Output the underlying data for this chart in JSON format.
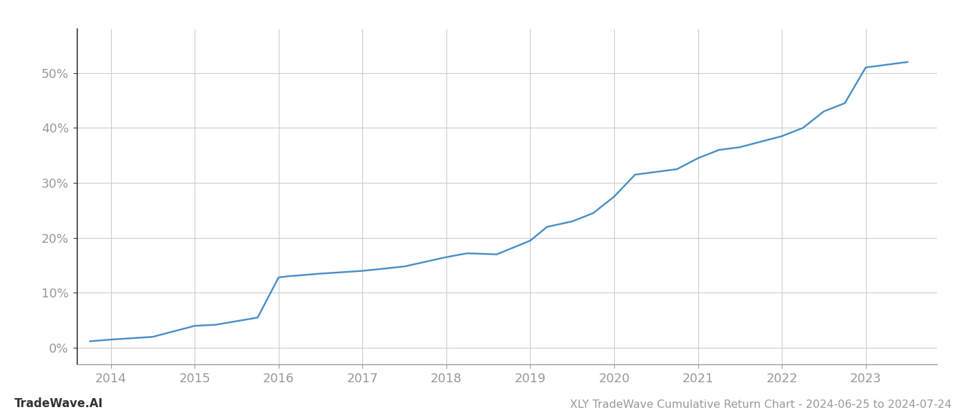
{
  "x_years": [
    2013.75,
    2014.0,
    2014.5,
    2015.0,
    2015.25,
    2015.75,
    2016.0,
    2016.1,
    2016.5,
    2017.0,
    2017.5,
    2018.0,
    2018.25,
    2018.6,
    2019.0,
    2019.2,
    2019.5,
    2019.75,
    2020.0,
    2020.25,
    2020.5,
    2020.75,
    2021.0,
    2021.25,
    2021.5,
    2021.75,
    2022.0,
    2022.25,
    2022.5,
    2022.75,
    2023.0,
    2023.5
  ],
  "y_values": [
    1.2,
    1.5,
    2.0,
    4.0,
    4.2,
    5.5,
    12.8,
    13.0,
    13.5,
    14.0,
    14.8,
    16.5,
    17.2,
    17.0,
    19.5,
    22.0,
    23.0,
    24.5,
    27.5,
    31.5,
    32.0,
    32.5,
    34.5,
    36.0,
    36.5,
    37.5,
    38.5,
    40.0,
    43.0,
    44.5,
    51.0,
    52.0
  ],
  "line_color": "#4a90c4",
  "line_width": 1.8,
  "background_color": "#ffffff",
  "grid_color": "#cccccc",
  "title": "XLY TradeWave Cumulative Return Chart - 2024-06-25 to 2024-07-24",
  "watermark_left": "TradeWave.AI",
  "xlim": [
    2013.6,
    2023.85
  ],
  "ylim": [
    -3,
    58
  ],
  "xtick_years": [
    2014,
    2015,
    2016,
    2017,
    2018,
    2019,
    2020,
    2021,
    2022,
    2023
  ],
  "ytick_values": [
    0,
    10,
    20,
    30,
    40,
    50
  ],
  "ytick_labels": [
    "0%",
    "10%",
    "20%",
    "30%",
    "40%",
    "50%"
  ],
  "tick_color": "#999999",
  "tick_fontsize": 13,
  "title_fontsize": 11.5,
  "watermark_fontsize": 12,
  "left_spine_color": "#333333",
  "bottom_spine_color": "#999999"
}
